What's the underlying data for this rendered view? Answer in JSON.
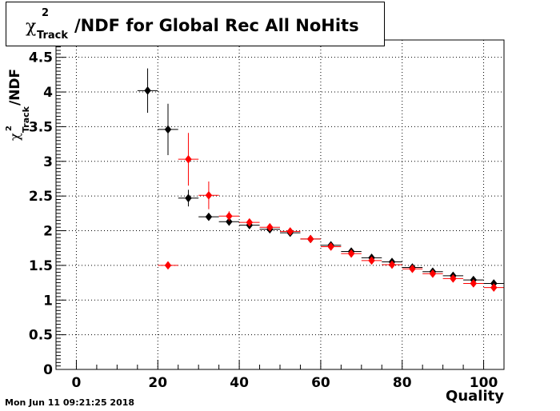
{
  "title": {
    "symbol": "χ",
    "superscript": "2",
    "subscript": "Track",
    "text": "/NDF for Global Rec All NoHits"
  },
  "timestamp": "Mon Jun 11 09:21:25 2018",
  "chart_data": {
    "type": "scatter",
    "title": "χ2Track/NDF for Global Rec All NoHits",
    "xlabel": "Quality",
    "ylabel": "χ2Track/NDF",
    "xlim": [
      -5,
      105
    ],
    "ylim": [
      0,
      4.75
    ],
    "x_ticks": [
      0,
      20,
      40,
      60,
      80,
      100
    ],
    "y_ticks": [
      0,
      0.5,
      1,
      1.5,
      2,
      2.5,
      3,
      3.5,
      4,
      4.5
    ],
    "x_tick_labels": [
      "0",
      "20",
      "40",
      "60",
      "80",
      "100"
    ],
    "y_tick_labels": [
      "0",
      "0.5",
      "1",
      "1.5",
      "2",
      "2.5",
      "3",
      "3.5",
      "4",
      "4.5"
    ],
    "grid": true,
    "bin_width": 5,
    "series": [
      {
        "color": "#000000",
        "marker": "diamond",
        "points": [
          {
            "x": 17.5,
            "y": 4.02,
            "err": 0.32
          },
          {
            "x": 22.5,
            "y": 3.46,
            "err": 0.37
          },
          {
            "x": 27.5,
            "y": 2.47,
            "err": 0.12
          },
          {
            "x": 32.5,
            "y": 2.2,
            "err": 0.05
          },
          {
            "x": 37.5,
            "y": 2.13,
            "err": 0.03
          },
          {
            "x": 42.5,
            "y": 2.08,
            "err": 0.02
          },
          {
            "x": 47.5,
            "y": 2.02,
            "err": 0.02
          },
          {
            "x": 52.5,
            "y": 1.97,
            "err": 0.02
          },
          {
            "x": 57.5,
            "y": 1.88,
            "err": 0.02
          },
          {
            "x": 62.5,
            "y": 1.79,
            "err": 0.02
          },
          {
            "x": 67.5,
            "y": 1.7,
            "err": 0.02
          },
          {
            "x": 72.5,
            "y": 1.61,
            "err": 0.02
          },
          {
            "x": 77.5,
            "y": 1.55,
            "err": 0.02
          },
          {
            "x": 82.5,
            "y": 1.47,
            "err": 0.02
          },
          {
            "x": 87.5,
            "y": 1.41,
            "err": 0.02
          },
          {
            "x": 92.5,
            "y": 1.35,
            "err": 0.02
          },
          {
            "x": 97.5,
            "y": 1.29,
            "err": 0.02
          },
          {
            "x": 102.5,
            "y": 1.24,
            "err": 0.02
          }
        ]
      },
      {
        "color": "#ff0000",
        "marker": "diamond",
        "points": [
          {
            "x": 22.5,
            "y": 1.5,
            "err": 0.0
          },
          {
            "x": 27.5,
            "y": 3.03,
            "err": 0.38
          },
          {
            "x": 32.5,
            "y": 2.51,
            "err": 0.2
          },
          {
            "x": 37.5,
            "y": 2.21,
            "err": 0.07
          },
          {
            "x": 42.5,
            "y": 2.12,
            "err": 0.04
          },
          {
            "x": 47.5,
            "y": 2.05,
            "err": 0.03
          },
          {
            "x": 52.5,
            "y": 1.99,
            "err": 0.02
          },
          {
            "x": 57.5,
            "y": 1.88,
            "err": 0.02
          },
          {
            "x": 62.5,
            "y": 1.77,
            "err": 0.02
          },
          {
            "x": 67.5,
            "y": 1.67,
            "err": 0.02
          },
          {
            "x": 72.5,
            "y": 1.57,
            "err": 0.02
          },
          {
            "x": 77.5,
            "y": 1.51,
            "err": 0.02
          },
          {
            "x": 82.5,
            "y": 1.45,
            "err": 0.02
          },
          {
            "x": 87.5,
            "y": 1.38,
            "err": 0.02
          },
          {
            "x": 92.5,
            "y": 1.31,
            "err": 0.02
          },
          {
            "x": 97.5,
            "y": 1.24,
            "err": 0.02
          },
          {
            "x": 102.5,
            "y": 1.18,
            "err": 0.02
          }
        ]
      }
    ]
  }
}
